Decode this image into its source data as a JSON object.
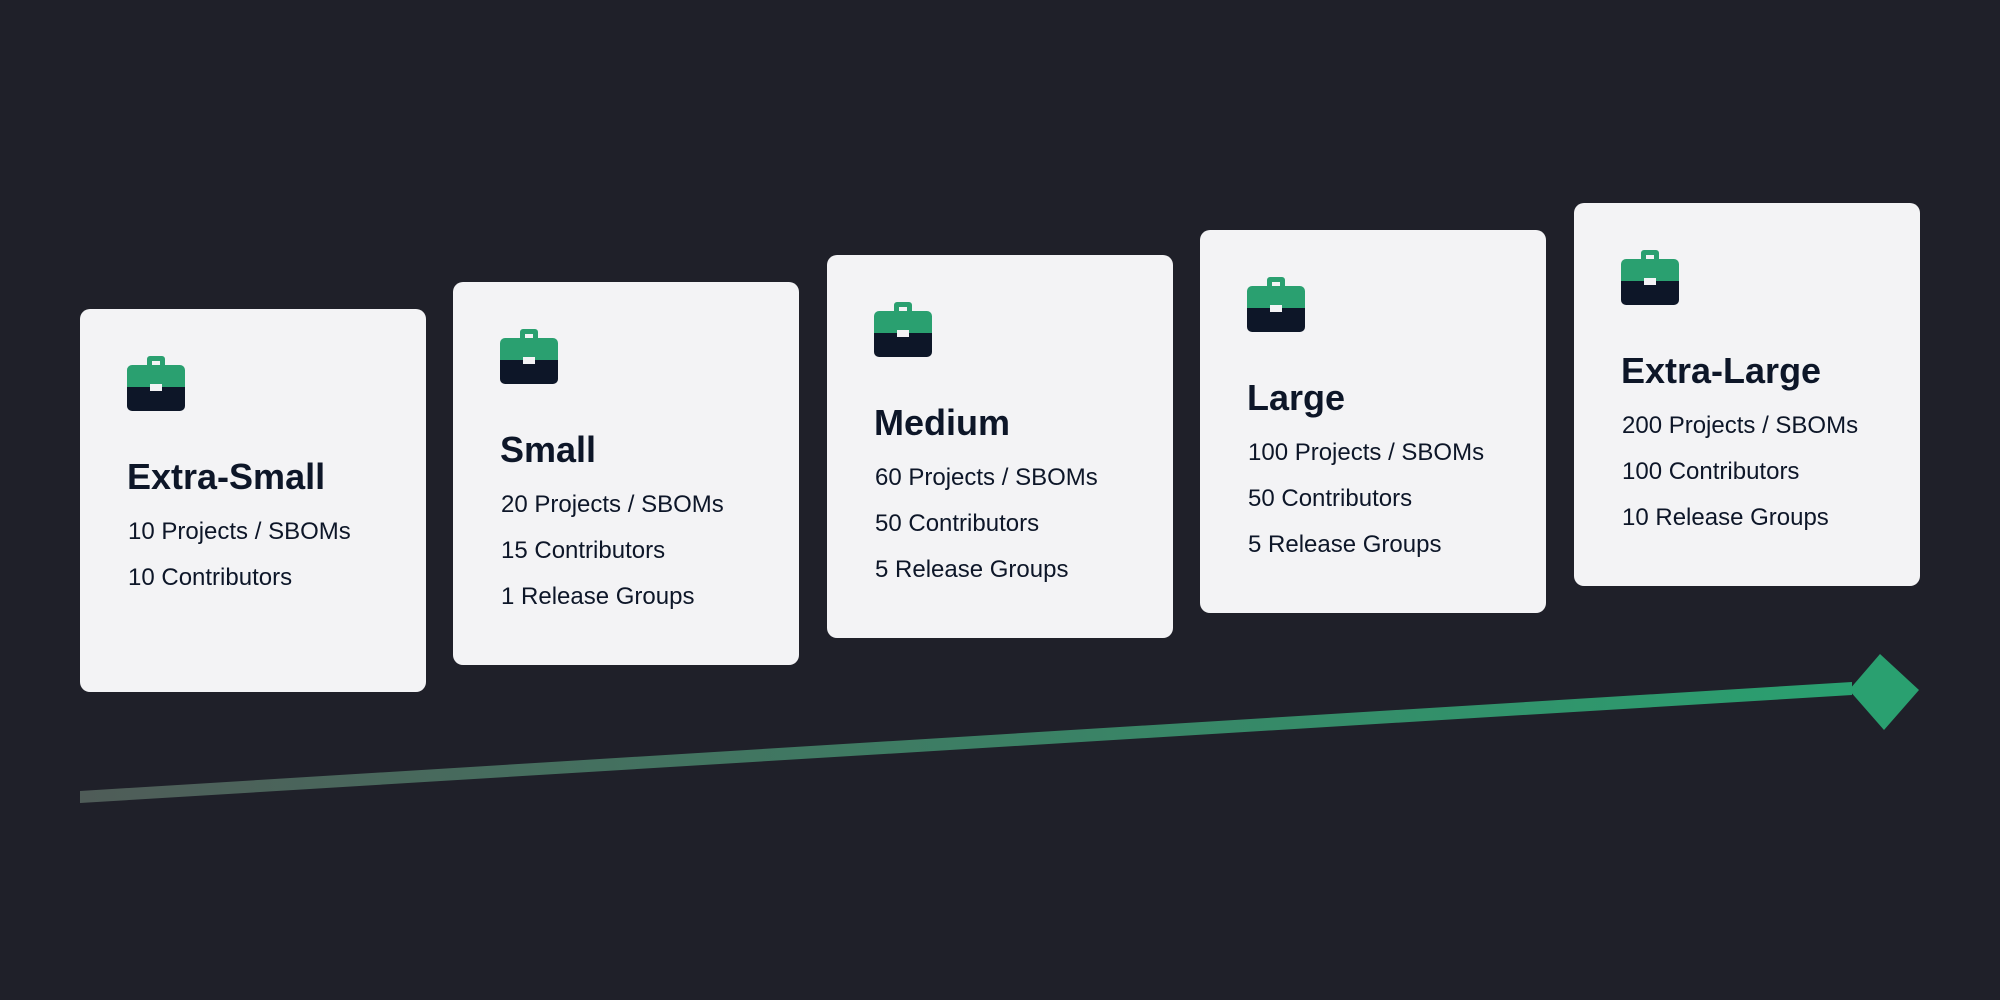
{
  "tiers": [
    {
      "title": "Extra-Small",
      "icon": "briefcase-icon",
      "lines": [
        "10 Projects / SBOMs",
        "10 Contributors"
      ]
    },
    {
      "title": "Small",
      "icon": "briefcase-icon",
      "lines": [
        "20 Projects / SBOMs",
        "15 Contributors",
        "1 Release Groups"
      ]
    },
    {
      "title": "Medium",
      "icon": "briefcase-icon",
      "lines": [
        "60 Projects / SBOMs",
        "50 Contributors",
        "5 Release Groups"
      ]
    },
    {
      "title": "Large",
      "icon": "briefcase-icon",
      "lines": [
        "100 Projects / SBOMs",
        "50 Contributors",
        "5 Release Groups"
      ]
    },
    {
      "title": "Extra-Large",
      "icon": "briefcase-icon",
      "lines": [
        "200 Projects / SBOMs",
        "100 Contributors",
        "10 Release Groups"
      ]
    }
  ],
  "colors": {
    "background": "#1f2029",
    "card": "#f3f3f5",
    "accent": "#2aa070",
    "icon_dark": "#0d1628",
    "arrow_start": "#4f5c58"
  }
}
